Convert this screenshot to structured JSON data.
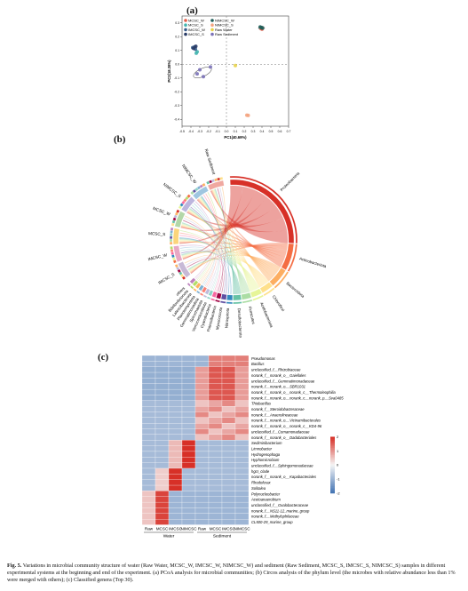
{
  "panel_a": {
    "label": "(a)",
    "legend": [
      {
        "name": "MCSC_W",
        "color": "#e55c47"
      },
      {
        "name": "NIMCSC_W",
        "color": "#1f5e59"
      },
      {
        "name": "MCSC_S",
        "color": "#45b5b0"
      },
      {
        "name": "NIMCSC_S",
        "color": "#f4a582"
      },
      {
        "name": "IMCSC_W",
        "color": "#3a5e8c"
      },
      {
        "name": "Raw Water",
        "color": "#e8d34a"
      },
      {
        "name": "IMCSC_S",
        "color": "#293b66"
      },
      {
        "name": "Raw Sediment",
        "color": "#7b72b8"
      }
    ],
    "xlabel": "PC1(40.69%)",
    "ylabel": "PC2(18.38%)",
    "xticks": [
      "-0.5",
      "-0.4",
      "-0.3",
      "-0.2",
      "-0.1",
      "0.0",
      "0.1",
      "0.2",
      "0.3",
      "0.4",
      "0.5",
      "0.6",
      "0.7"
    ],
    "yticks": [
      "0.3",
      "0.2",
      "0.1",
      "0.0",
      "-0.1",
      "-0.2",
      "-0.3",
      "-0.4"
    ]
  },
  "chart_data": {
    "type": "scatter",
    "xlabel": "PC1(40.69%)",
    "ylabel": "PC2(18.38%)",
    "xlim": [
      -0.5,
      0.7
    ],
    "ylim": [
      -0.45,
      0.35
    ],
    "series": [
      {
        "name": "MCSC_W",
        "color": "#e55c47",
        "points": [
          [
            0.39,
            0.26
          ],
          [
            0.4,
            0.255
          ]
        ]
      },
      {
        "name": "NIMCSC_W",
        "color": "#1f5e59",
        "points": [
          [
            0.38,
            0.27
          ],
          [
            0.395,
            0.265
          ],
          [
            0.405,
            0.262
          ]
        ]
      },
      {
        "name": "MCSC_S",
        "color": "#45b5b0",
        "points": [
          [
            -0.34,
            0.08
          ],
          [
            -0.33,
            0.09
          ]
        ]
      },
      {
        "name": "NIMCSC_S",
        "color": "#f4a582",
        "points": [
          [
            0.23,
            -0.37
          ],
          [
            0.245,
            -0.372
          ]
        ]
      },
      {
        "name": "IMCSC_W",
        "color": "#3a5e8c",
        "points": [
          [
            -0.38,
            0.12
          ],
          [
            -0.36,
            0.125
          ],
          [
            -0.35,
            0.11
          ]
        ]
      },
      {
        "name": "Raw Water",
        "color": "#e8d34a",
        "points": [
          [
            0.1,
            -0.01
          ]
        ]
      },
      {
        "name": "IMCSC_S",
        "color": "#293b66",
        "points": [
          [
            -0.37,
            0.115
          ],
          [
            -0.345,
            0.13
          ]
        ]
      },
      {
        "name": "Raw Sediment",
        "color": "#7b72b8",
        "points": [
          [
            -0.33,
            -0.07
          ],
          [
            -0.3,
            -0.04
          ],
          [
            -0.26,
            -0.09
          ],
          [
            -0.18,
            -0.02
          ]
        ]
      }
    ]
  },
  "panel_b": {
    "label": "(b)",
    "left_labels": [
      "Raw Sediment",
      "NIMCSC_W",
      "NIMCSC_S",
      "MCSC_W",
      "MCSC_S",
      "IMCSC_W",
      "IMCSC_S"
    ],
    "right_labels": [
      "Proteobacteria",
      "Actinobacteriota",
      "Bacteroidota",
      "Chloroflexi",
      "Acidobacteriota",
      "Firmicutes",
      "Desulfobacterota",
      "Nitrospirota",
      "Myxococcota",
      "Patescibacteria",
      "Cyanobacteria",
      "Verrucomicrobiota",
      "Spirochaetota",
      "Gemmatimonadota",
      "Planctomycetota",
      "Latescibacterota",
      "Bdellovibrionota",
      "others"
    ]
  },
  "panel_c": {
    "label": "(c)",
    "genera": [
      "Pseudomonas",
      "Bacillus",
      "unclassified_f__Rhizobiaceae",
      "norank_f__norank_o__Gaiellales",
      "unclassified_f__Gemmatimonadaceae",
      "norank_f__norank_o__SBR1031",
      "norank_f__norank_o__norank_c__Thermoleophilia",
      "norank_f__norank_o__norank_c__norank_p__Sva0485",
      "Thiobacillus",
      "norank_f__Steroidobacteraceae",
      "norank_f__Anaerolineaceae",
      "norank_f__norank_o__Vicinamibacterales",
      "norank_f__norank_o__norank_c__KD4-96",
      "unclassified_f__Comamonadaceae",
      "norank_f__norank_o__Dadabacteriales",
      "Sediminibacterium",
      "Limnobacter",
      "Hydrogenophaga",
      "Hyphomicrobium",
      "unclassified_f__Sphingomonadaceae",
      "hgcI_clade",
      "norank_f__norank_o__Kapabacteriales",
      "Rhodoferax",
      "Solitalea",
      "Polynucleobacter",
      "Acetoanaerobium",
      "unclassified_f__Oxalobacteraceae",
      "norank_f__NS11-12_marine_group",
      "norank_f__Methylophilaceae",
      "CL500-29_marine_group"
    ],
    "columns": [
      "Raw",
      "MCSC",
      "IMCSC",
      "NIMCSC",
      "Raw",
      "MCSC",
      "IMCSC",
      "NIMCSC"
    ],
    "groups": [
      "Water",
      "Sediment"
    ],
    "scale_ticks": [
      "2",
      "1",
      "0",
      "-1",
      "-2"
    ]
  },
  "caption": {
    "head": "Fig. 5.",
    "text": "Variations in microbial community structure of water (Raw Water, MCSC_W, IMCSC_W, NIMCSC_W) and sediment (Raw Sediment, MCSC_S, IMCSC_S, NIMCSC_S) samples in different experimental systems at the beginning and end of the experiment. (a) PCoA analysis for microbial communities; (b) Circos analysis of the phylum level (the microbes with relative abundance less than 1% were merged with others); (c) Classified genera (Top 30)."
  }
}
